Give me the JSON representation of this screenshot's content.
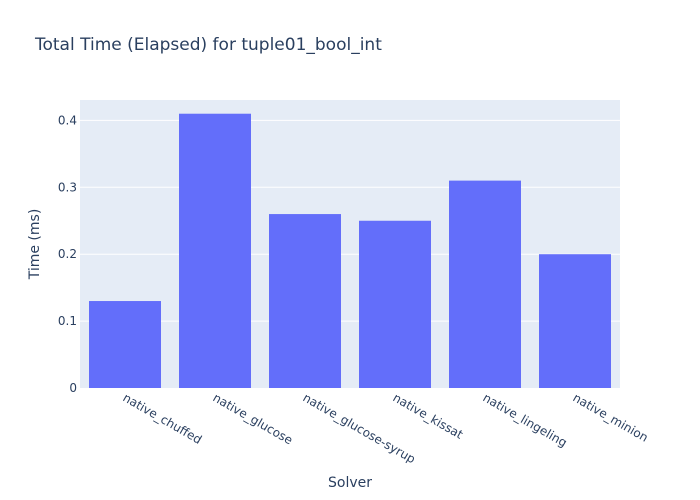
{
  "chart_data": {
    "type": "bar",
    "title": "Total Time (Elapsed) for tuple01_bool_int",
    "xlabel": "Solver",
    "ylabel": "Time (ms)",
    "categories": [
      "native_chuffed",
      "native_glucose",
      "native_glucose-syrup",
      "native_kissat",
      "native_lingeling",
      "native_minion"
    ],
    "values": [
      0.13,
      0.41,
      0.26,
      0.25,
      0.31,
      0.2
    ],
    "ylim": [
      0,
      0.4305
    ],
    "yticks": [
      0,
      0.1,
      0.2,
      0.3,
      0.4
    ],
    "ytick_labels": [
      "0",
      "0.1",
      "0.2",
      "0.3",
      "0.4"
    ],
    "grid": true,
    "legend": "none",
    "colors": {
      "bar": "#636efa",
      "plot_bg": "#e5ecf6",
      "text": "#2a3f5f",
      "grid": "#ffffff"
    }
  }
}
